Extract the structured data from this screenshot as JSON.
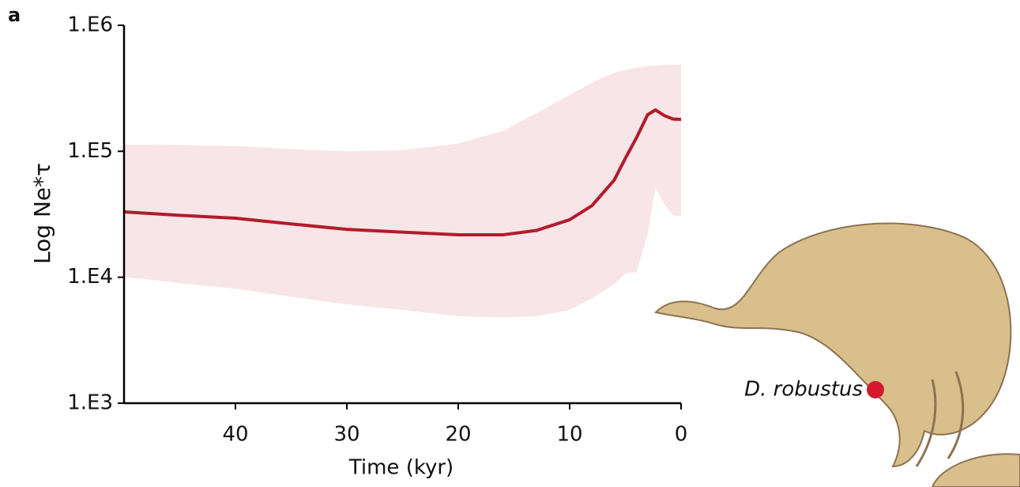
{
  "chart_data": {
    "type": "band-line",
    "panel_label": "a",
    "ylabel": "Log Ne*τ",
    "xlabel": "Time (kyr)",
    "x": [
      50,
      45,
      40,
      35,
      30,
      25,
      20,
      16,
      13,
      10,
      8,
      6,
      5,
      4,
      3,
      2.3,
      1.5,
      0.7,
      0
    ],
    "series": [
      {
        "name": "D. robustus",
        "color": "#b41a2c",
        "values": [
          33000,
          31000,
          29400,
          26500,
          24000,
          22800,
          21700,
          21700,
          23500,
          28600,
          37000,
          59000,
          88000,
          128000,
          195000,
          213000,
          192000,
          180000,
          179000
        ],
        "lower": [
          10100,
          9000,
          8100,
          7000,
          6100,
          5500,
          4900,
          4800,
          4900,
          5500,
          6800,
          8800,
          10700,
          11000,
          22000,
          52000,
          38000,
          31000,
          30600
        ],
        "upper": [
          113000,
          112000,
          110000,
          104000,
          100000,
          102000,
          115000,
          145000,
          200000,
          280000,
          350000,
          420000,
          440000,
          460000,
          475000,
          480000,
          485000,
          486000,
          486000
        ],
        "band_color": "#f7e5e7",
        "marker_color": "#d4192f"
      }
    ],
    "xlim": [
      50,
      0
    ],
    "xticks": [
      40,
      30,
      20,
      10,
      0
    ],
    "ylim": [
      1000,
      1000000
    ],
    "ylog": true,
    "yticks": [
      {
        "value": 1000,
        "label": "1.E3"
      },
      {
        "value": 10000,
        "label": "1.E4"
      },
      {
        "value": 100000,
        "label": "1.E5"
      },
      {
        "value": 1000000,
        "label": "1.E6"
      }
    ]
  }
}
